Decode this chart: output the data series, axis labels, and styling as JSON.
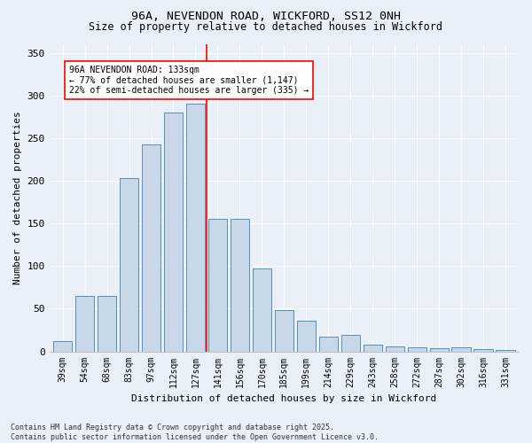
{
  "title": "96A, NEVENDON ROAD, WICKFORD, SS12 0NH",
  "subtitle": "Size of property relative to detached houses in Wickford",
  "xlabel": "Distribution of detached houses by size in Wickford",
  "ylabel": "Number of detached properties",
  "categories": [
    "39sqm",
    "54sqm",
    "68sqm",
    "83sqm",
    "97sqm",
    "112sqm",
    "127sqm",
    "141sqm",
    "156sqm",
    "170sqm",
    "185sqm",
    "199sqm",
    "214sqm",
    "229sqm",
    "243sqm",
    "258sqm",
    "272sqm",
    "287sqm",
    "302sqm",
    "316sqm",
    "331sqm"
  ],
  "bar_values": [
    12,
    65,
    65,
    203,
    243,
    280,
    290,
    155,
    155,
    97,
    48,
    36,
    17,
    19,
    8,
    6,
    5,
    4,
    5,
    3,
    2
  ],
  "bar_color": "#c8d8e8",
  "bar_edge_color": "#5b8db8",
  "vline_color": "red",
  "vline_pos": 7.0,
  "annotation_text": "96A NEVENDON ROAD: 133sqm\n← 77% of detached houses are smaller (1,147)\n22% of semi-detached houses are larger (335) →",
  "annotation_box_color": "white",
  "annotation_box_edge": "red",
  "ylim": [
    0,
    360
  ],
  "yticks": [
    0,
    50,
    100,
    150,
    200,
    250,
    300,
    350
  ],
  "bg_color": "#eaf0f8",
  "grid_color": "#ffffff",
  "footer": "Contains HM Land Registry data © Crown copyright and database right 2025.\nContains public sector information licensed under the Open Government Licence v3.0."
}
